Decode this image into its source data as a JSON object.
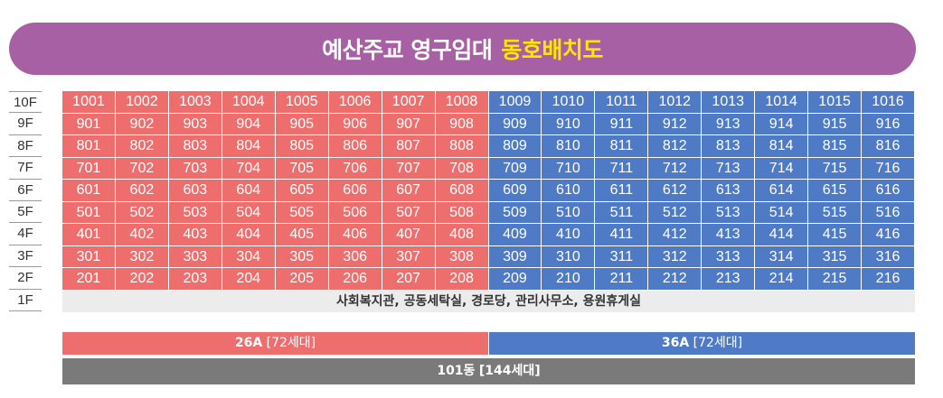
{
  "title": {
    "main": "예산주교 영구임대",
    "highlight": "동호배치도"
  },
  "floors": [
    "10F",
    "9F",
    "8F",
    "7F",
    "6F",
    "5F",
    "4F",
    "3F",
    "2F",
    "1F"
  ],
  "units": [
    [
      "1001",
      "1002",
      "1003",
      "1004",
      "1005",
      "1006",
      "1007",
      "1008",
      "1009",
      "1010",
      "1011",
      "1012",
      "1013",
      "1014",
      "1015",
      "1016"
    ],
    [
      "901",
      "902",
      "903",
      "904",
      "905",
      "906",
      "907",
      "908",
      "909",
      "910",
      "911",
      "912",
      "913",
      "914",
      "915",
      "916"
    ],
    [
      "801",
      "802",
      "803",
      "804",
      "805",
      "806",
      "807",
      "808",
      "809",
      "810",
      "811",
      "812",
      "813",
      "814",
      "815",
      "816"
    ],
    [
      "701",
      "702",
      "703",
      "704",
      "705",
      "706",
      "707",
      "708",
      "709",
      "710",
      "711",
      "712",
      "713",
      "714",
      "715",
      "716"
    ],
    [
      "601",
      "602",
      "603",
      "604",
      "605",
      "606",
      "607",
      "608",
      "609",
      "610",
      "611",
      "612",
      "613",
      "614",
      "615",
      "616"
    ],
    [
      "501",
      "502",
      "503",
      "504",
      "505",
      "506",
      "507",
      "508",
      "509",
      "510",
      "511",
      "512",
      "513",
      "514",
      "515",
      "516"
    ],
    [
      "401",
      "402",
      "403",
      "404",
      "405",
      "406",
      "407",
      "408",
      "409",
      "410",
      "411",
      "412",
      "413",
      "414",
      "415",
      "416"
    ],
    [
      "301",
      "302",
      "303",
      "304",
      "305",
      "306",
      "307",
      "308",
      "309",
      "310",
      "311",
      "312",
      "313",
      "314",
      "315",
      "316"
    ],
    [
      "201",
      "202",
      "203",
      "204",
      "205",
      "206",
      "207",
      "208",
      "209",
      "210",
      "211",
      "212",
      "213",
      "214",
      "215",
      "216"
    ]
  ],
  "ground_floor": "사회복지관, 공동세탁실, 경로당, 관리사무소, 용원휴게실",
  "legend": {
    "type_a": {
      "name": "26A",
      "count": "[72세대]"
    },
    "type_b": {
      "name": "36A",
      "count": "[72세대]"
    },
    "building": {
      "name": "101동",
      "count": "[144세대]"
    }
  },
  "colors": {
    "type_a": "#ee6e6e",
    "type_b": "#4f7bc6",
    "building": "#7a7a7a",
    "title_bg": "#a860a4",
    "highlight": "#ffe600"
  }
}
